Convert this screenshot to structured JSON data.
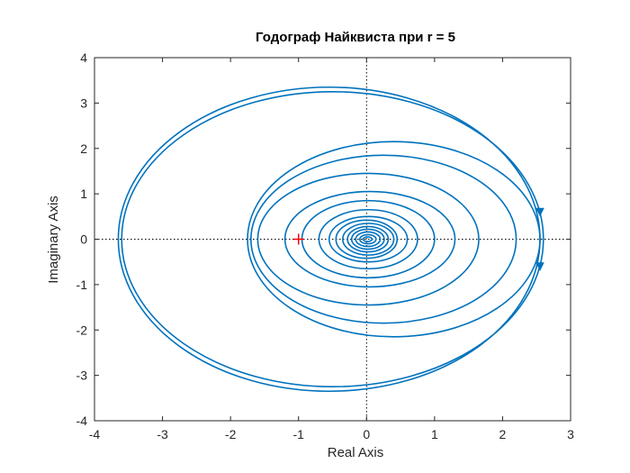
{
  "chart_data": {
    "type": "line",
    "title": "Годограф Найквиста при r = 5",
    "xlabel": "Real Axis",
    "ylabel": "Imaginary Axis",
    "xlim": [
      -4,
      3
    ],
    "ylim": [
      -4,
      4
    ],
    "x_ticks": [
      "-4",
      "-3",
      "-2",
      "-1",
      "0",
      "1",
      "2",
      "3"
    ],
    "y_ticks": [
      "4",
      "3",
      "2",
      "1",
      "0",
      "-1",
      "-2",
      "-3",
      "-4"
    ],
    "grid": false,
    "legend": "none",
    "series_color": "#0072BD",
    "critical_point": {
      "x": -1,
      "y": 0,
      "marker": "+",
      "color": "#FF0000"
    },
    "reference_lines": {
      "x": 0,
      "y": 0,
      "style": "dotted",
      "color": "#000000"
    },
    "loops": [
      {
        "x_min": -3.65,
        "x_max": 2.55,
        "y_max": 3.35
      },
      {
        "x_min": -3.6,
        "x_max": 2.6,
        "y_max": 3.25
      },
      {
        "x_min": -1.75,
        "x_max": 2.55,
        "y_max": 2.15
      },
      {
        "x_min": -1.7,
        "x_max": 2.2,
        "y_max": 1.85
      },
      {
        "x_min": -1.6,
        "x_max": 1.65,
        "y_max": 1.45
      },
      {
        "x_min": -1.2,
        "x_max": 1.3,
        "y_max": 1.05
      },
      {
        "x_min": -0.95,
        "x_max": 1.0,
        "y_max": 0.85
      },
      {
        "x_min": -0.7,
        "x_max": 0.75,
        "y_max": 0.65
      },
      {
        "x_min": -0.55,
        "x_max": 0.6,
        "y_max": 0.5
      },
      {
        "x_min": -0.45,
        "x_max": 0.45,
        "y_max": 0.42
      },
      {
        "x_min": -0.35,
        "x_max": 0.4,
        "y_max": 0.35
      },
      {
        "x_min": -0.28,
        "x_max": 0.32,
        "y_max": 0.28
      },
      {
        "x_min": -0.22,
        "x_max": 0.26,
        "y_max": 0.22
      },
      {
        "x_min": -0.16,
        "x_max": 0.2,
        "y_max": 0.16
      },
      {
        "x_min": -0.1,
        "x_max": 0.14,
        "y_max": 0.1
      },
      {
        "x_min": -0.05,
        "x_max": 0.08,
        "y_max": 0.05
      }
    ],
    "arrows": [
      {
        "x": 2.55,
        "y": 0.6,
        "direction": "down"
      },
      {
        "x": 2.55,
        "y": -0.6,
        "direction": "down"
      }
    ]
  }
}
